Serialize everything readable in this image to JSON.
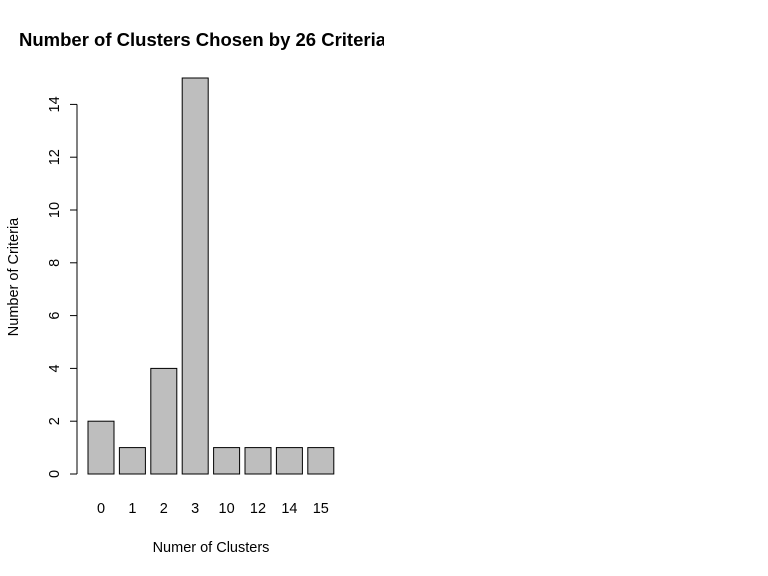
{
  "chart_data": {
    "type": "bar",
    "title": "Number of Clusters Chosen by 26 Criteria",
    "xlabel": "Numer of Clusters",
    "ylabel": "Number of Criteria",
    "categories": [
      "0",
      "1",
      "2",
      "3",
      "10",
      "12",
      "14",
      "15"
    ],
    "values": [
      2,
      1,
      4,
      15,
      1,
      1,
      1,
      1
    ],
    "ylim": [
      0,
      15
    ],
    "yticks": [
      0,
      2,
      4,
      6,
      8,
      10,
      12,
      14
    ],
    "grid": false,
    "legend": "none",
    "colors": {
      "bar_fill": "#bebebe",
      "bar_stroke": "#000000",
      "text": "#000000",
      "background": "#ffffff"
    }
  }
}
